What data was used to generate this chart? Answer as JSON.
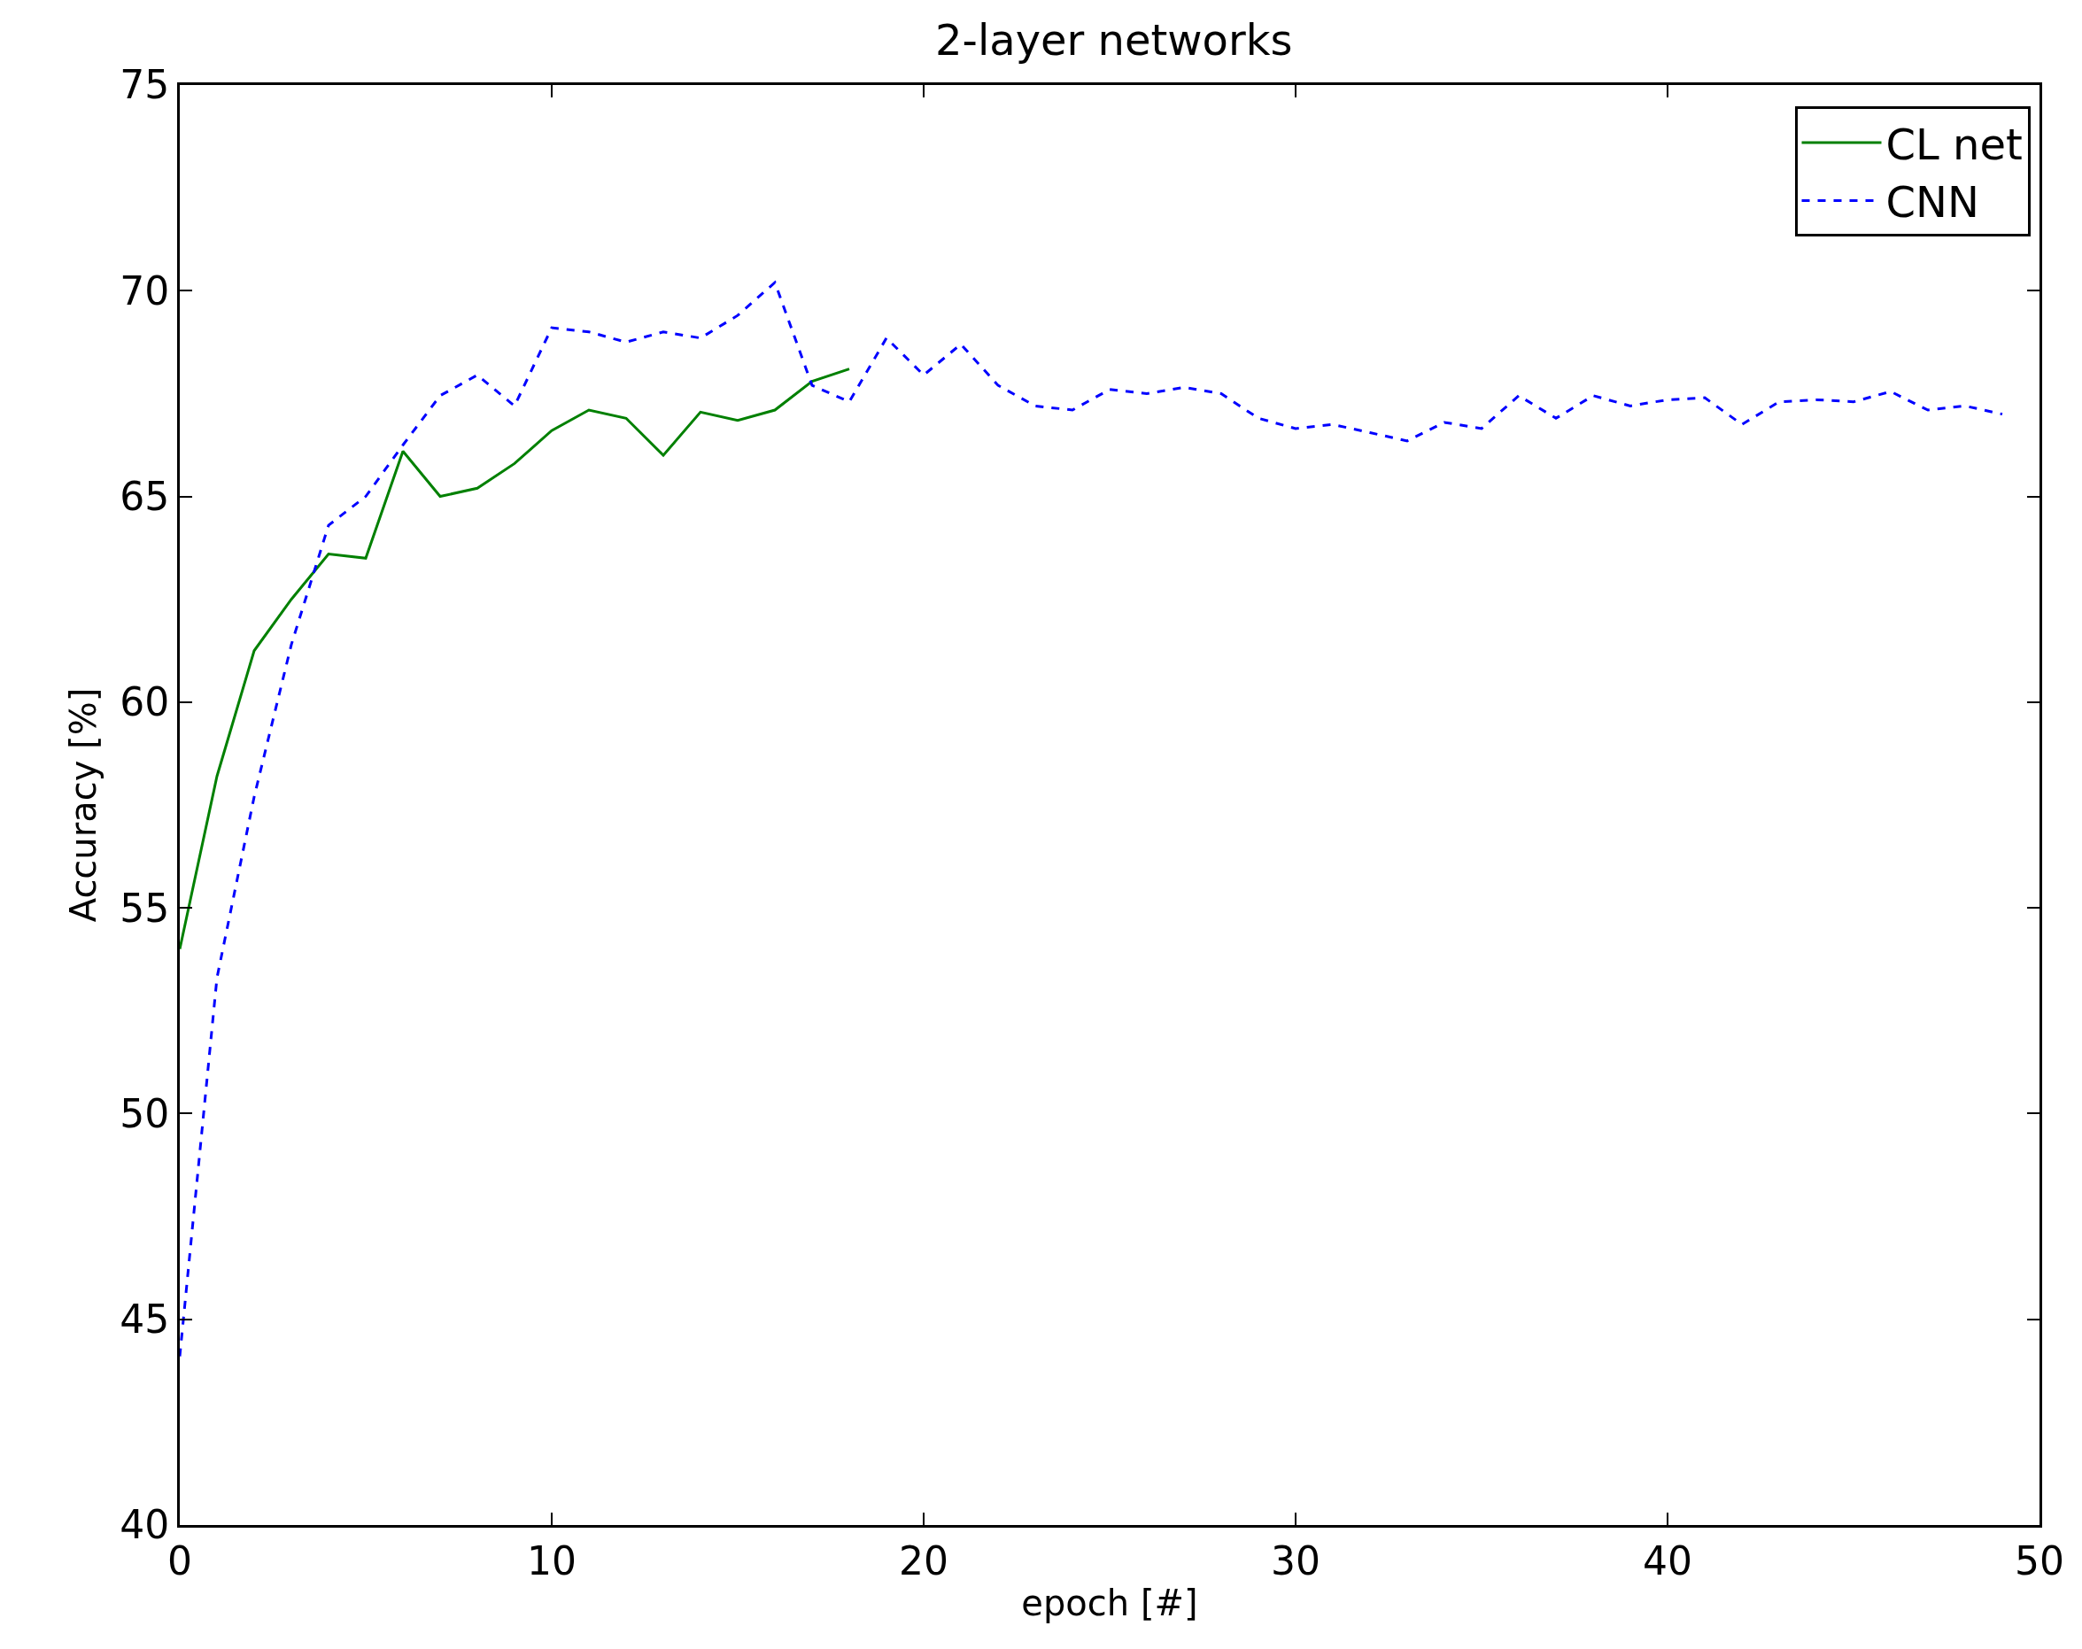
{
  "chart_data": {
    "type": "line",
    "title": "2-layer networks",
    "xlabel": "epoch [#]",
    "ylabel": "Accuracy [%]",
    "xlim": [
      0,
      50
    ],
    "xticks": [
      0,
      10,
      20,
      30,
      40,
      50
    ],
    "ylim": [
      40,
      75
    ],
    "yticks": [
      40,
      45,
      50,
      55,
      60,
      65,
      70,
      75
    ],
    "grid": false,
    "legend": "top right",
    "marker": "none",
    "series": [
      {
        "name": "CL net",
        "color": "#008000",
        "line_style": "solid",
        "x": [
          0,
          1,
          2,
          3,
          4,
          5,
          6,
          7,
          8,
          9,
          10,
          11,
          12,
          13,
          14,
          15,
          16,
          17,
          18
        ],
        "values": [
          54.0,
          58.2,
          61.25,
          62.5,
          63.6,
          63.5,
          66.1,
          65.0,
          65.2,
          65.8,
          66.6,
          67.1,
          66.9,
          66.0,
          67.05,
          66.85,
          67.1,
          67.8,
          68.1
        ]
      },
      {
        "name": "CNN",
        "color": "#0000ff",
        "line_style": "dashed",
        "x": [
          0,
          1,
          2,
          3,
          4,
          5,
          6,
          7,
          8,
          9,
          10,
          11,
          12,
          13,
          14,
          15,
          16,
          17,
          18,
          19,
          20,
          21,
          22,
          23,
          24,
          25,
          26,
          27,
          28,
          29,
          30,
          31,
          32,
          33,
          34,
          35,
          36,
          37,
          38,
          39,
          40,
          41,
          42,
          43,
          44,
          45,
          46,
          47,
          48,
          49
        ],
        "values": [
          44.1,
          53.3,
          57.7,
          61.4,
          64.3,
          65.0,
          66.25,
          67.45,
          67.95,
          67.2,
          69.1,
          69.0,
          68.75,
          69.0,
          68.85,
          69.4,
          70.2,
          67.7,
          67.3,
          68.85,
          67.95,
          68.7,
          67.7,
          67.2,
          67.1,
          67.6,
          67.5,
          67.65,
          67.5,
          66.9,
          66.65,
          66.75,
          66.55,
          66.35,
          66.8,
          66.65,
          67.45,
          66.9,
          67.45,
          67.2,
          67.35,
          67.4,
          66.75,
          67.3,
          67.35,
          67.3,
          67.55,
          67.1,
          67.2,
          67.0
        ]
      }
    ]
  }
}
